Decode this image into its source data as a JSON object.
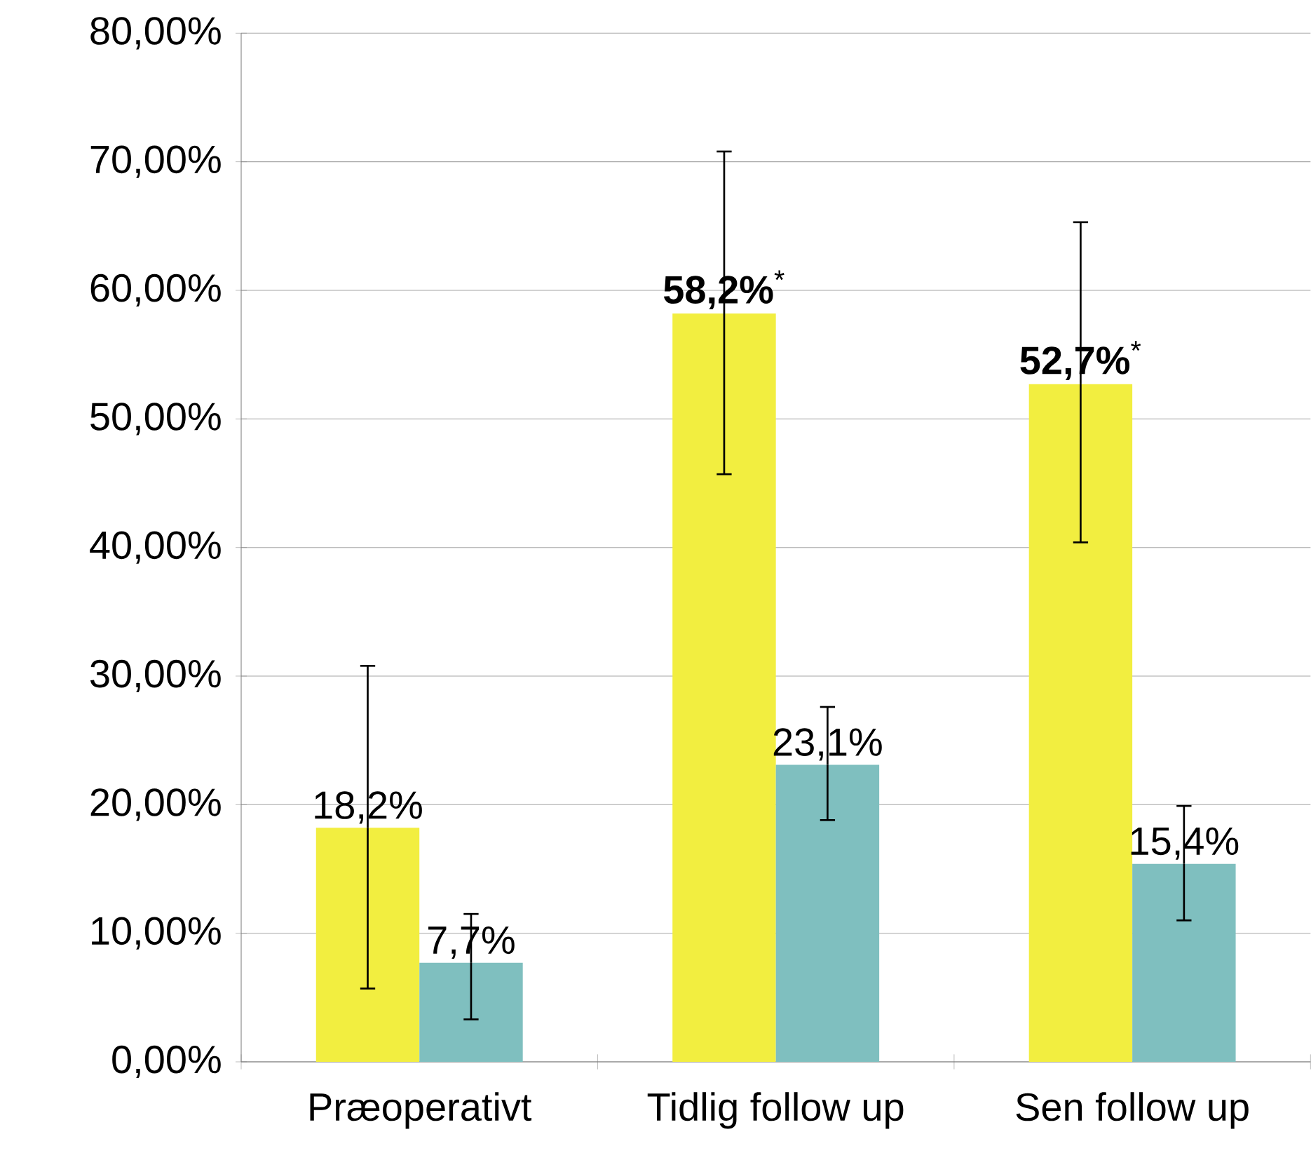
{
  "chart_data": {
    "type": "bar",
    "categories": [
      "Præoperativt",
      "Tidlig follow up",
      "Sen follow up"
    ],
    "ylim": [
      0,
      80
    ],
    "yticks": [
      {
        "value": 0,
        "label": "0,00%"
      },
      {
        "value": 10,
        "label": "10,00%"
      },
      {
        "value": 20,
        "label": "20,00%"
      },
      {
        "value": 30,
        "label": "30,00%"
      },
      {
        "value": 40,
        "label": "40,00%"
      },
      {
        "value": 50,
        "label": "50,00%"
      },
      {
        "value": 60,
        "label": "60,00%"
      },
      {
        "value": 70,
        "label": "70,00%"
      },
      {
        "value": 80,
        "label": "80,00%"
      }
    ],
    "grid": "y",
    "series": [
      {
        "color": "#f2ee40",
        "values": [
          18.2,
          58.2,
          52.7
        ],
        "errors": [
          [
            5.7,
            30.8
          ],
          [
            45.7,
            70.8
          ],
          [
            40.4,
            65.3
          ]
        ],
        "value_labels": [
          "18,2%",
          "**58,2%**$^{*}$",
          "**52,7%**$^{*}$"
        ]
      },
      {
        "color": "#7fbfbf",
        "values": [
          7.7,
          23.1,
          15.4
        ],
        "errors": [
          [
            3.3,
            11.5
          ],
          [
            18.8,
            27.6
          ],
          [
            11.0,
            19.9
          ]
        ],
        "value_labels": [
          "7,7%",
          "23,1%",
          "15,4%"
        ]
      }
    ]
  }
}
